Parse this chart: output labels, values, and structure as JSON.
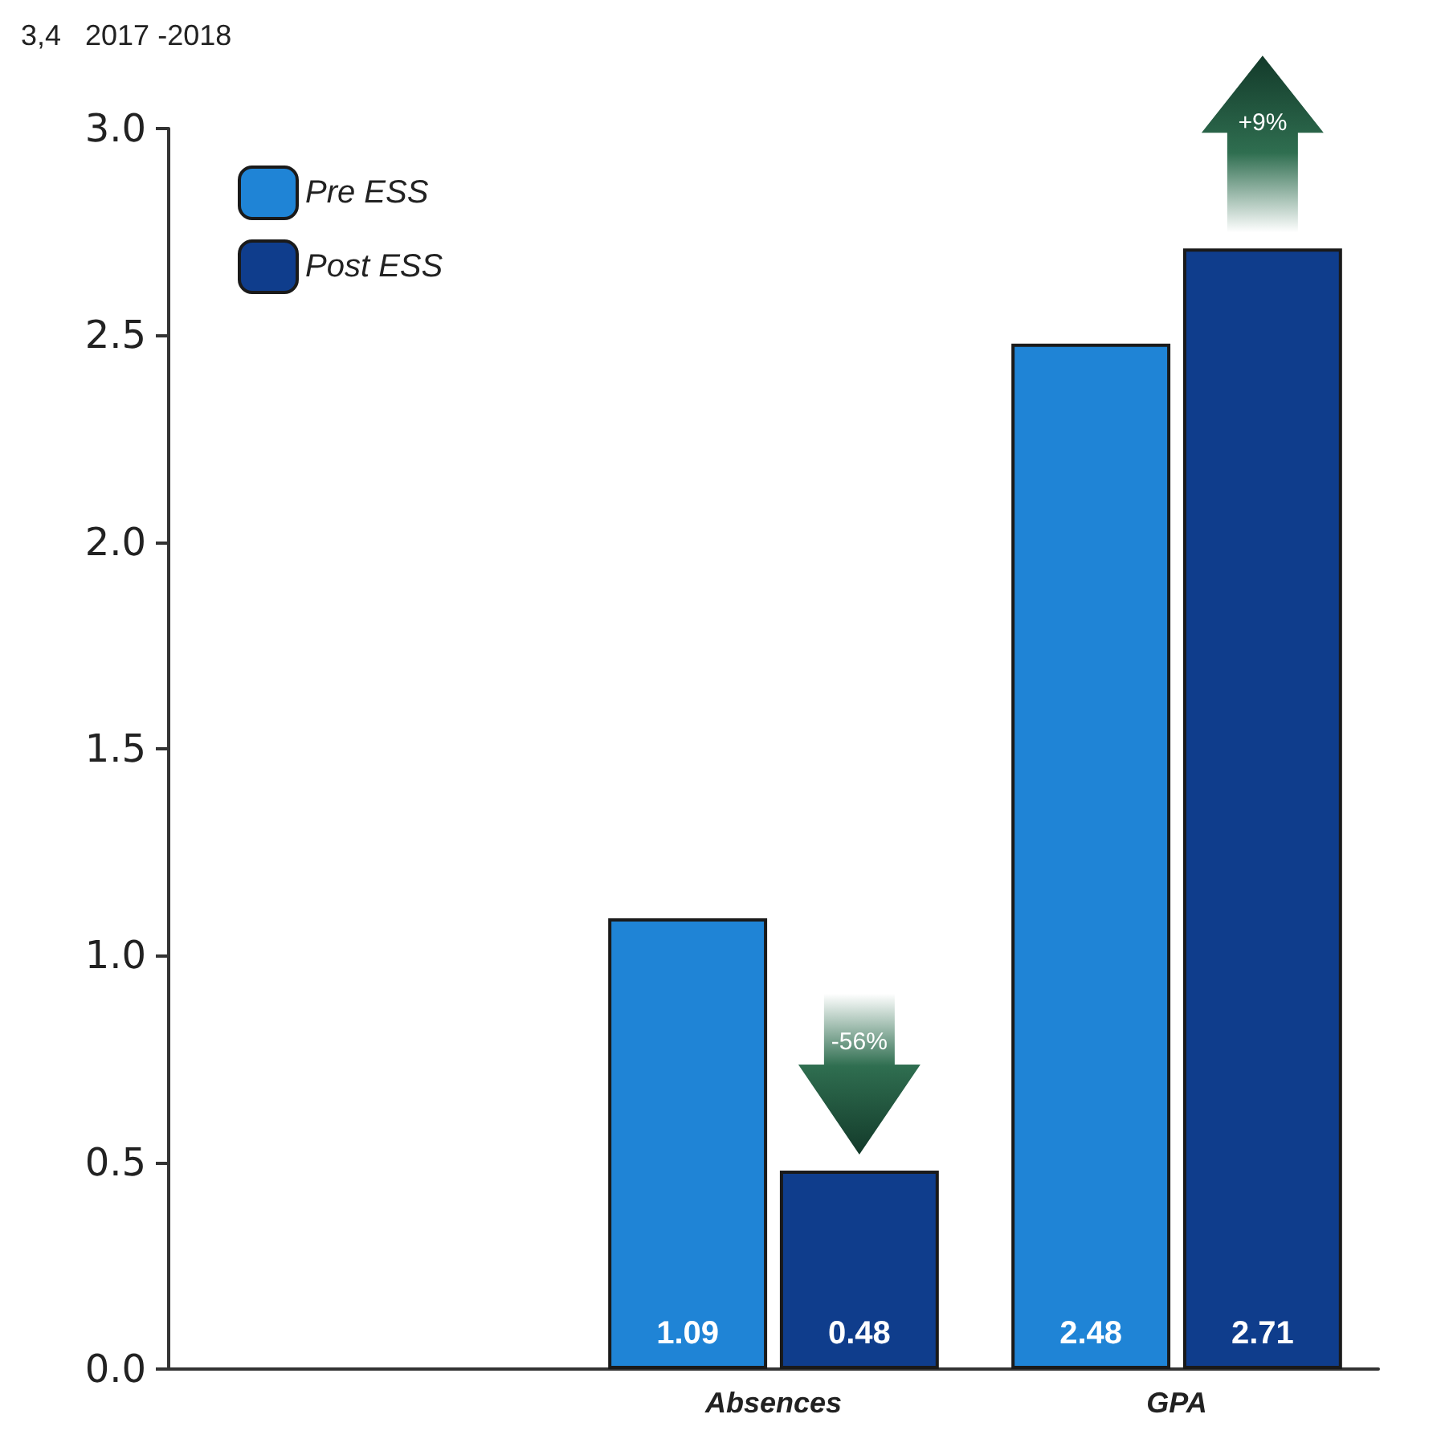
{
  "chart_data": {
    "type": "bar",
    "title": "3,4   2017 -2018",
    "categories": [
      null,
      "Absences",
      "GPA"
    ],
    "series": [
      {
        "name": "Pre ESS",
        "color": "#1f84d6",
        "values": [
          null,
          1.09,
          2.48
        ]
      },
      {
        "name": "Post ESS",
        "color": "#0f3d8c",
        "values": [
          null,
          0.48,
          2.71
        ]
      }
    ],
    "data_labels": true,
    "ylim": [
      0,
      3
    ],
    "yticks": [
      {
        "value": 0,
        "label": "0.0"
      },
      {
        "value": 0.5,
        "label": "0.5"
      },
      {
        "value": 1,
        "label": "1.0"
      },
      {
        "value": 1.5,
        "label": "1.5"
      },
      {
        "value": 2,
        "label": "2.0"
      },
      {
        "value": 2.5,
        "label": "2.5"
      },
      {
        "value": 3,
        "label": "3.0"
      }
    ],
    "legend": "top left",
    "grid": false,
    "annotations": [
      "-56%",
      "+9%"
    ]
  }
}
